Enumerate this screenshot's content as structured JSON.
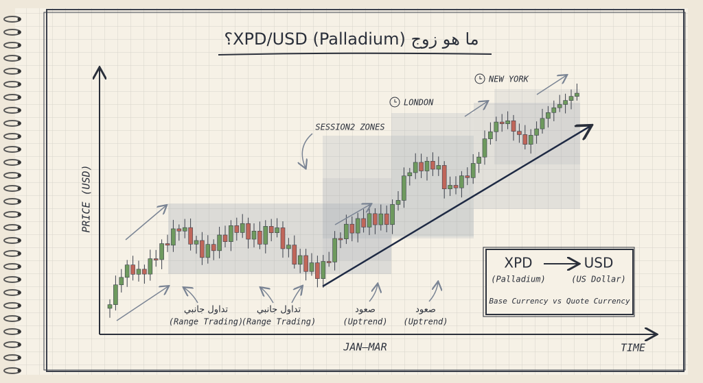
{
  "title": "ما هو زوج XPD/USD (Palladium)؟",
  "axes": {
    "y_label": "PRICE (USD)",
    "x_label": "JAN–MAR",
    "x_end": "TIME"
  },
  "zones": {
    "label": "SESSION2 ZONES",
    "london": "LONDON",
    "new_york": "NEW YORK"
  },
  "annotations": [
    {
      "arabic": "تداول جانبي",
      "english": "(Range Trading)"
    },
    {
      "arabic": "تداول جانبي",
      "english": "(Range Trading)"
    },
    {
      "arabic": "صعود",
      "english": "(Uptrend)"
    },
    {
      "arabic": "صعود",
      "english": "(Uptrend)"
    }
  ],
  "legend": {
    "base": "XPD",
    "quote": "USD",
    "base_name": "(Palladium)",
    "quote_name": "(US Dollar)",
    "caption": "Base Currency vs Quote Currency"
  }
}
